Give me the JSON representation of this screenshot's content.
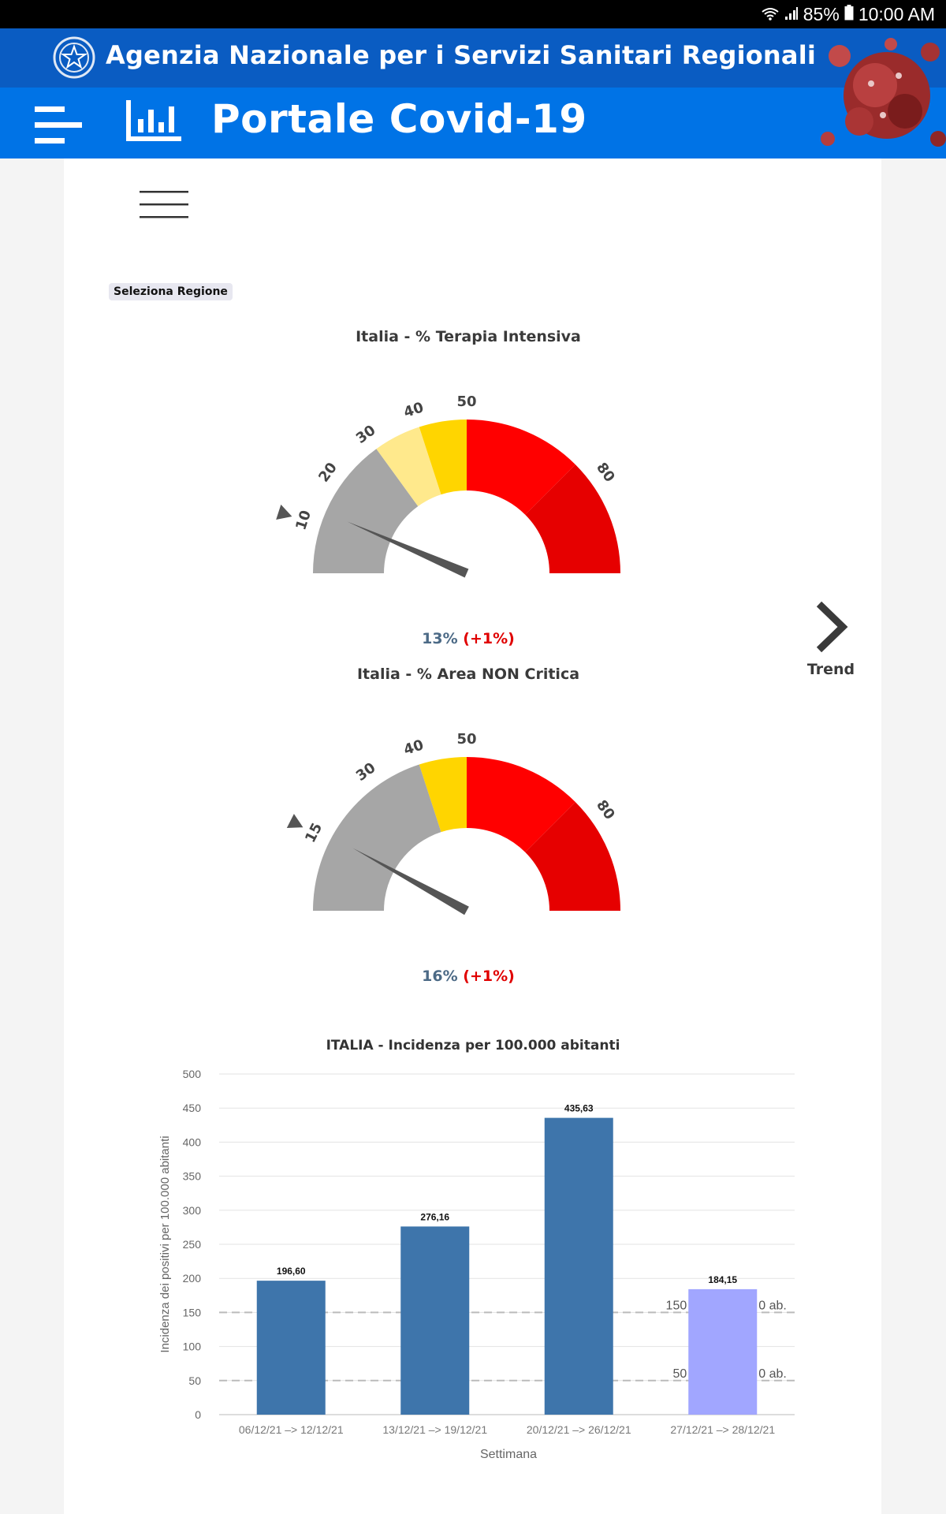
{
  "status_bar": {
    "battery": "85%",
    "time": "10:00 AM"
  },
  "header": {
    "agency": "Agenzia Nazionale per i Servizi Sanitari Regionali",
    "portal": "Portale Covid-19"
  },
  "region_selector": {
    "label": "Seleziona Regione"
  },
  "trend": {
    "label": "Trend"
  },
  "gauges": [
    {
      "title": "Italia - % Terapia Intensiva",
      "value_text": "13%",
      "delta_text": "(+1%)",
      "value": 13,
      "threshold": 10,
      "ticks": [
        "10",
        "20",
        "30",
        "40",
        "50",
        "80"
      ],
      "tick_values": [
        10,
        20,
        30,
        40,
        50,
        80
      ],
      "bands": [
        {
          "from": 0,
          "to": 30,
          "color": "#a6a6a6"
        },
        {
          "from": 30,
          "to": 40,
          "color": "#ffe98c"
        },
        {
          "from": 40,
          "to": 50,
          "color": "#ffd500"
        },
        {
          "from": 50,
          "to": 75,
          "color": "#ff0000"
        },
        {
          "from": 75,
          "to": 100,
          "color": "#e60000"
        }
      ]
    },
    {
      "title": "Italia - % Area NON Critica",
      "value_text": "16%",
      "delta_text": "(+1%)",
      "value": 16,
      "threshold": 15,
      "ticks": [
        "15",
        "30",
        "40",
        "50",
        "80"
      ],
      "tick_values": [
        15,
        30,
        40,
        50,
        80
      ],
      "bands": [
        {
          "from": 0,
          "to": 40,
          "color": "#a6a6a6"
        },
        {
          "from": 40,
          "to": 50,
          "color": "#ffd500"
        },
        {
          "from": 50,
          "to": 75,
          "color": "#ff0000"
        },
        {
          "from": 75,
          "to": 100,
          "color": "#e60000"
        }
      ]
    }
  ],
  "chart_data": {
    "type": "bar",
    "title": "ITALIA - Incidenza per 100.000 abitanti",
    "xlabel": "Settimana",
    "ylabel": "Incidenza dei positivi per 100.000 abitanti",
    "ylim": [
      0,
      500
    ],
    "yticks": [
      0,
      50,
      100,
      150,
      200,
      250,
      300,
      350,
      400,
      450,
      500
    ],
    "categories": [
      "06/12/21 –> 12/12/21",
      "13/12/21 –> 19/12/21",
      "20/12/21 –> 26/12/21",
      "27/12/21 –> 28/12/21"
    ],
    "values": [
      196.6,
      276.16,
      435.63,
      184.15
    ],
    "value_labels": [
      "196,60",
      "276,16",
      "435,63",
      "184,15"
    ],
    "bar_colors": [
      "#3e75ab",
      "#3e75ab",
      "#3e75ab",
      "#a1a6ff"
    ],
    "grid": true,
    "reference_lines": [
      {
        "value": 150,
        "label_left": "150",
        "label_right": "0 ab."
      },
      {
        "value": 50,
        "label_left": "50",
        "label_right": "0 ab."
      }
    ]
  }
}
